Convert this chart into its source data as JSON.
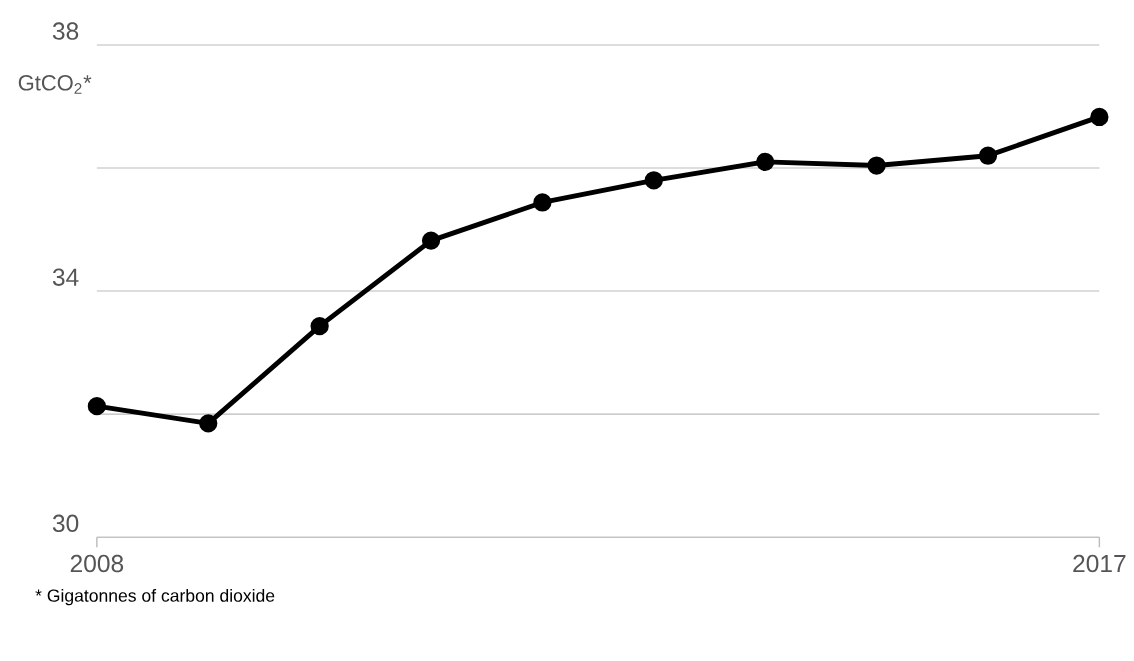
{
  "chart_data": {
    "type": "line",
    "ylabel": "GtCO$_{2}$*",
    "x": [
      2008,
      2009,
      2010,
      2011,
      2012,
      2013,
      2014,
      2015,
      2016,
      2017
    ],
    "series": [
      {
        "color": "#000000",
        "values": [
          32.13,
          31.85,
          33.43,
          34.82,
          35.44,
          35.8,
          36.1,
          36.04,
          36.2,
          36.83
        ]
      }
    ],
    "xlim": [
      2008,
      2017
    ],
    "xticks": [
      2008,
      2017
    ],
    "ylim": [
      30,
      38
    ],
    "yticks": [
      30,
      {
        "value": 32,
        "label": null
      },
      34,
      {
        "value": 36,
        "label": null
      },
      38
    ],
    "grid": "y",
    "marker": "circle",
    "line_style": "solid",
    "annotations": [
      "* Gigatonnes of carbon dioxide"
    ]
  }
}
